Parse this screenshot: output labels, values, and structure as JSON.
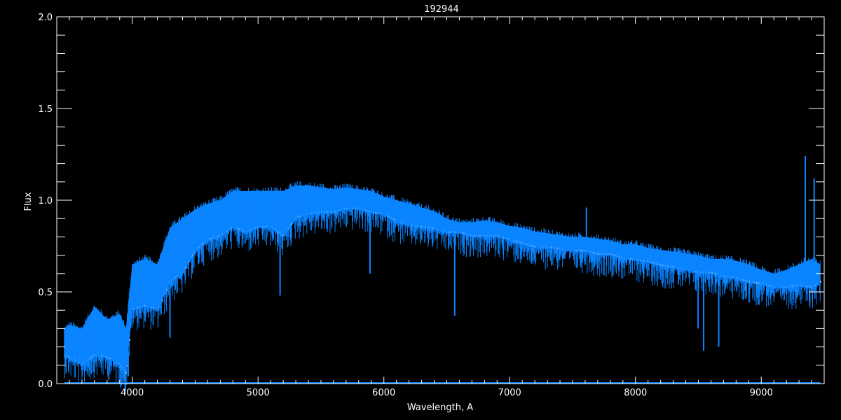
{
  "chart_data": {
    "type": "line",
    "title": "192944",
    "xlabel": "Wavelength, A",
    "ylabel": "Flux",
    "xlim": [
      3400,
      9500
    ],
    "ylim": [
      0,
      2.0
    ],
    "x_ticks": [
      4000,
      5000,
      6000,
      7000,
      8000,
      9000
    ],
    "x_tick_labels": [
      "4000",
      "5000",
      "6000",
      "7000",
      "8000",
      "9000"
    ],
    "x_minor_step": 100,
    "y_ticks": [
      0.0,
      0.5,
      1.0,
      1.5,
      2.0
    ],
    "y_tick_labels": [
      "0.0",
      "0.5",
      "1.0",
      "1.5",
      "2.0"
    ],
    "y_minor_step": 0.1,
    "grid": false,
    "colors": {
      "background": "#000000",
      "axes": "#ffffff",
      "spectrum": "#0a84ff",
      "model": "#ffffff"
    },
    "spectrum_envelope": {
      "wavelength": [
        3460,
        3500,
        3600,
        3700,
        3800,
        3900,
        3950,
        4000,
        4100,
        4200,
        4300,
        4400,
        4500,
        4600,
        4700,
        4800,
        4900,
        5000,
        5100,
        5200,
        5300,
        5400,
        5500,
        5600,
        5700,
        5800,
        5900,
        6000,
        6100,
        6200,
        6300,
        6400,
        6500,
        6600,
        6700,
        6800,
        6900,
        7000,
        7100,
        7200,
        7300,
        7400,
        7500,
        7600,
        7700,
        7800,
        7900,
        8000,
        8100,
        8200,
        8300,
        8400,
        8500,
        8600,
        8700,
        8800,
        8900,
        9000,
        9100,
        9200,
        9300,
        9400,
        9470
      ],
      "upper": [
        0.3,
        0.32,
        0.3,
        0.42,
        0.35,
        0.38,
        0.3,
        0.65,
        0.68,
        0.65,
        0.85,
        0.9,
        0.95,
        0.98,
        1.0,
        1.05,
        1.05,
        1.05,
        1.05,
        1.05,
        1.08,
        1.08,
        1.07,
        1.06,
        1.07,
        1.06,
        1.05,
        1.02,
        1.0,
        0.98,
        0.96,
        0.94,
        0.9,
        0.88,
        0.88,
        0.89,
        0.88,
        0.86,
        0.85,
        0.83,
        0.82,
        0.81,
        0.8,
        0.8,
        0.79,
        0.78,
        0.76,
        0.76,
        0.74,
        0.73,
        0.72,
        0.71,
        0.7,
        0.68,
        0.68,
        0.67,
        0.65,
        0.62,
        0.6,
        0.62,
        0.65,
        0.68,
        0.65
      ],
      "lower": [
        0.15,
        0.14,
        0.1,
        0.15,
        0.14,
        0.1,
        0.05,
        0.4,
        0.42,
        0.4,
        0.55,
        0.6,
        0.72,
        0.78,
        0.8,
        0.85,
        0.82,
        0.85,
        0.85,
        0.8,
        0.9,
        0.92,
        0.93,
        0.93,
        0.95,
        0.95,
        0.93,
        0.92,
        0.88,
        0.86,
        0.85,
        0.84,
        0.82,
        0.82,
        0.8,
        0.8,
        0.8,
        0.78,
        0.76,
        0.74,
        0.74,
        0.73,
        0.72,
        0.72,
        0.7,
        0.7,
        0.68,
        0.67,
        0.66,
        0.64,
        0.63,
        0.62,
        0.6,
        0.6,
        0.58,
        0.57,
        0.55,
        0.54,
        0.52,
        0.52,
        0.53,
        0.52,
        0.55
      ]
    },
    "features": [
      {
        "wavelength": 3934,
        "flux": 0.05
      },
      {
        "wavelength": 3968,
        "flux": 0.04
      },
      {
        "wavelength": 4300,
        "flux": 0.25
      },
      {
        "wavelength": 5175,
        "flux": 0.48
      },
      {
        "wavelength": 5890,
        "flux": 0.6
      },
      {
        "wavelength": 6563,
        "flux": 0.37
      },
      {
        "wavelength": 7610,
        "flux": 0.96
      },
      {
        "wavelength": 8498,
        "flux": 0.3
      },
      {
        "wavelength": 8542,
        "flux": 0.18
      },
      {
        "wavelength": 8662,
        "flux": 0.2
      },
      {
        "wavelength": 9350,
        "flux": 1.24
      },
      {
        "wavelength": 9420,
        "flux": 1.12
      }
    ]
  }
}
